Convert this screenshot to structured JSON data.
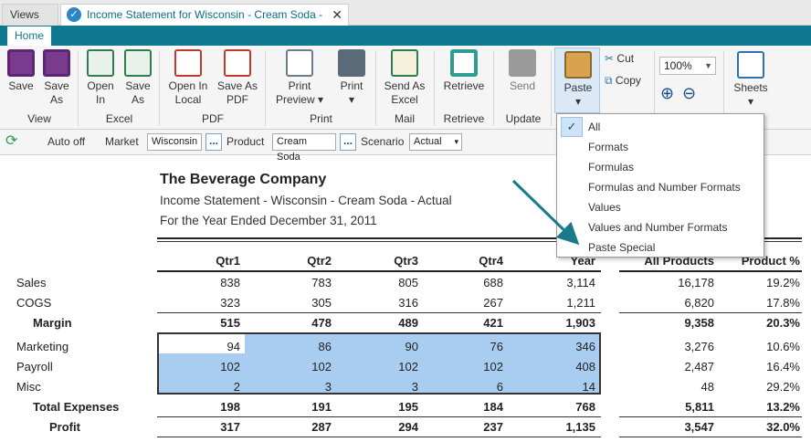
{
  "tabs": {
    "views": "Views",
    "document": "Income Statement for Wisconsin - Cream Soda - Actual",
    "close": "✕"
  },
  "ribbon_tab": "Home",
  "ribbon": {
    "buttons": [
      {
        "key": "save",
        "l1": "Save",
        "l2": ""
      },
      {
        "key": "save_as",
        "l1": "Save",
        "l2": "As"
      },
      {
        "key": "open_in",
        "l1": "Open",
        "l2": "In"
      },
      {
        "key": "save_as_xl",
        "l1": "Save",
        "l2": "As"
      },
      {
        "key": "open_local",
        "l1": "Open In",
        "l2": "Local"
      },
      {
        "key": "save_pdf",
        "l1": "Save As",
        "l2": "PDF"
      },
      {
        "key": "print_preview",
        "l1": "Print",
        "l2": "Preview ▾"
      },
      {
        "key": "print",
        "l1": "Print",
        "l2": "▾"
      },
      {
        "key": "send_excel",
        "l1": "Send As",
        "l2": "Excel"
      },
      {
        "key": "retrieve",
        "l1": "Retrieve",
        "l2": ""
      },
      {
        "key": "send",
        "l1": "Send",
        "l2": ""
      },
      {
        "key": "paste",
        "l1": "Paste",
        "l2": "▾"
      },
      {
        "key": "sheets",
        "l1": "Sheets",
        "l2": "▾"
      }
    ],
    "groups": {
      "view": "View",
      "excel": "Excel",
      "pdf": "PDF",
      "print": "Print",
      "mail": "Mail",
      "retrieve": "Retrieve",
      "update": "Update"
    },
    "cut": "Cut",
    "copy": "Copy",
    "zoom": "100%",
    "zoom_in": "⊕",
    "zoom_out": "⊖"
  },
  "options": {
    "auto_off": "Auto off",
    "market_label": "Market",
    "market": "Wisconsin",
    "product_label": "Product",
    "product": "Cream Soda",
    "scenario_label": "Scenario",
    "scenario": "Actual",
    "dots": "...",
    "dd": "▾"
  },
  "report": {
    "title": "The Beverage Company",
    "subtitle": "Income Statement - Wisconsin - Cream Soda - Actual",
    "date": "For the Year Ended December 31, 2011",
    "columns": [
      "Qtr1",
      "Qtr2",
      "Qtr3",
      "Qtr4",
      "Year",
      "All Products",
      "Product %"
    ],
    "rows": [
      {
        "label": "Sales",
        "values": [
          "838",
          "783",
          "805",
          "688",
          "3,114",
          "16,178",
          "19.2%"
        ],
        "bold": false,
        "indent": 0
      },
      {
        "label": "COGS",
        "values": [
          "323",
          "305",
          "316",
          "267",
          "1,211",
          "6,820",
          "17.8%"
        ],
        "bold": false,
        "indent": 0
      },
      {
        "label": "Margin",
        "values": [
          "515",
          "478",
          "489",
          "421",
          "1,903",
          "9,358",
          "20.3%"
        ],
        "bold": true,
        "indent": 1
      },
      {
        "label": "Marketing",
        "values": [
          "94",
          "86",
          "90",
          "76",
          "346",
          "3,276",
          "10.6%"
        ],
        "bold": false,
        "indent": 0
      },
      {
        "label": "Payroll",
        "values": [
          "102",
          "102",
          "102",
          "102",
          "408",
          "2,487",
          "16.4%"
        ],
        "bold": false,
        "indent": 0
      },
      {
        "label": "Misc",
        "values": [
          "2",
          "3",
          "3",
          "6",
          "14",
          "48",
          "29.2%"
        ],
        "bold": false,
        "indent": 0
      },
      {
        "label": "Total Expenses",
        "values": [
          "198",
          "191",
          "195",
          "184",
          "768",
          "5,811",
          "13.2%"
        ],
        "bold": true,
        "indent": 1
      },
      {
        "label": "Profit",
        "values": [
          "317",
          "287",
          "294",
          "237",
          "1,135",
          "3,547",
          "32.0%"
        ],
        "bold": true,
        "indent": 2
      }
    ]
  },
  "paste_menu": {
    "check": "✓",
    "items": [
      "All",
      "Formats",
      "Formulas",
      "Formulas and Number Formats",
      "Values",
      "Values and Number Formats",
      "Paste Special"
    ]
  },
  "colors": {
    "accent": "#0e7990",
    "selection": "#a8cdf0",
    "arrow": "#1a7a8c"
  }
}
